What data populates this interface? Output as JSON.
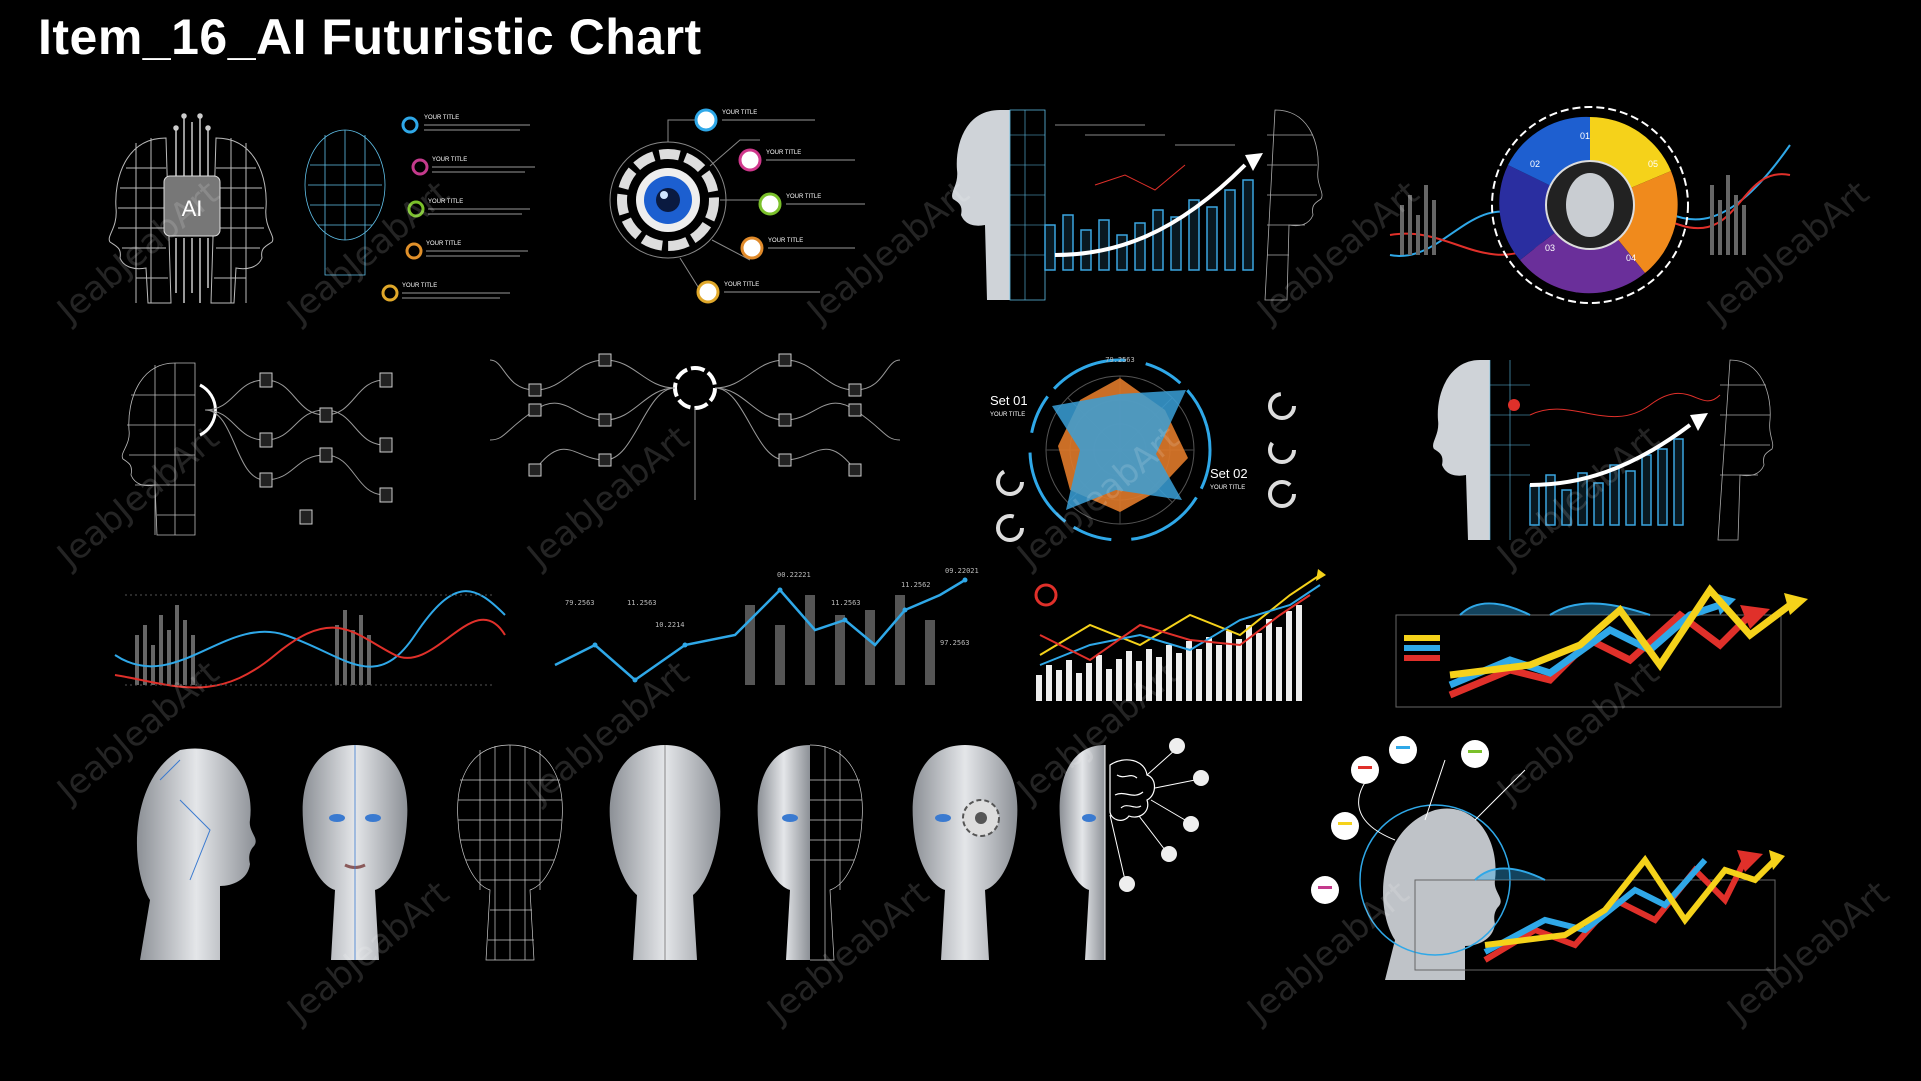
{
  "title": "Item_16_AI Futuristic Chart",
  "watermark": "JeabJeabArt",
  "ai_chip_label": "AI",
  "infographic": {
    "item_title": "YOUR TITLE",
    "numbers": [
      "01",
      "02",
      "03",
      "04",
      "05"
    ]
  },
  "radar": {
    "set1_label": "Set 01",
    "set1_sub": "YOUR TITLE",
    "set2_label": "Set 02",
    "set2_sub": "YOUR TITLE",
    "top_value": "79.2563",
    "colors": {
      "set1": "#3aa0d8",
      "set2": "#e07a2a"
    }
  },
  "line_chart": {
    "point_labels": [
      "79.2563",
      "11.2563",
      "10.2214",
      "00.22221",
      "11.2563",
      "11.2562",
      "09.22021",
      "97.2563"
    ]
  },
  "colors": {
    "accent_blue": "#2fa8e8",
    "accent_red": "#e0302a",
    "accent_yellow": "#f5d21a",
    "accent_orange": "#f08a1c",
    "accent_purple": "#6a2f9a",
    "segment_blue": "#1e5fd0"
  }
}
